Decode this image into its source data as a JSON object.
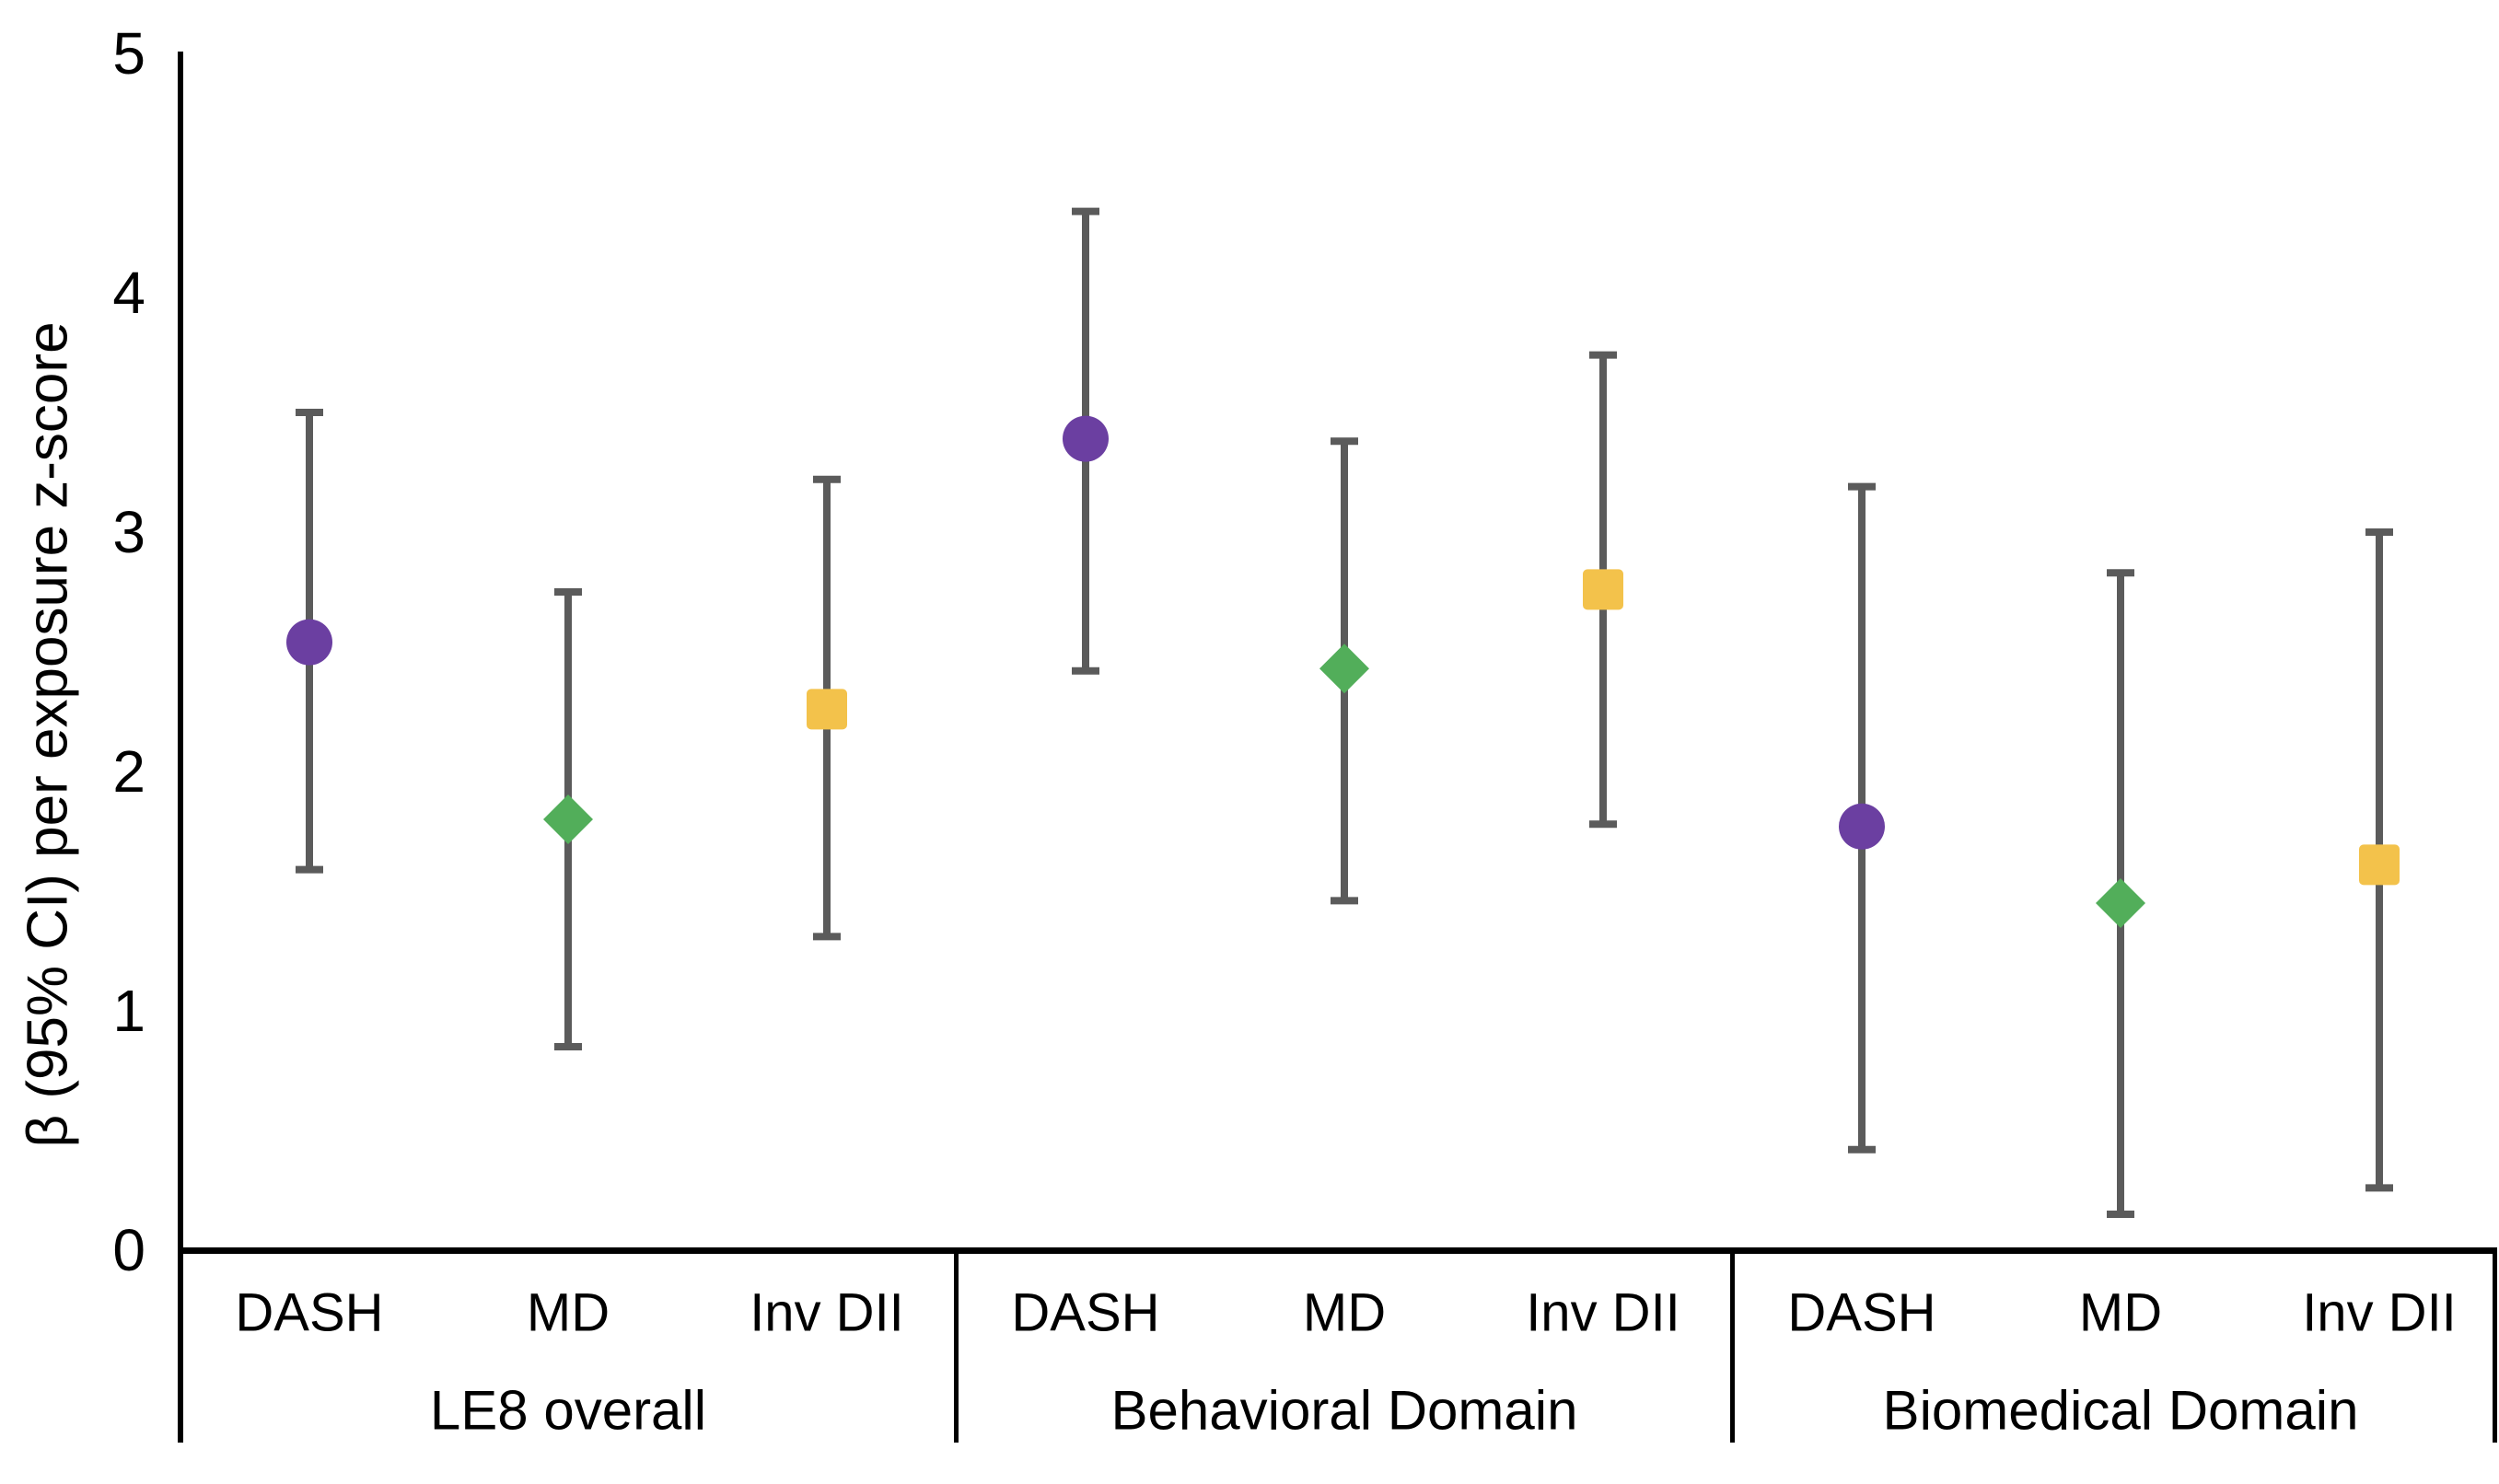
{
  "figure": {
    "background": "#ffffff"
  },
  "chart_data": {
    "type": "scatter",
    "title": "",
    "xlabel": "",
    "ylabel": "β (95% CI) per exposure z-score",
    "ylim": [
      0,
      5
    ],
    "yticks": [
      0,
      1,
      2,
      3,
      4,
      5
    ],
    "grid": false,
    "legend_position": "none",
    "error_bar_color": "#5B5B5B",
    "axis_color": "#000000",
    "markers": {
      "DASH": {
        "shape": "circle",
        "color": "#6B3FA1"
      },
      "MD": {
        "shape": "diamond",
        "color": "#52AE5A"
      },
      "Inv DII": {
        "shape": "square",
        "color": "#F3C24B"
      }
    },
    "groups": [
      {
        "label": "LE8 overall",
        "points": [
          {
            "category": "DASH",
            "value": 2.54,
            "ci_low": 1.59,
            "ci_high": 3.5
          },
          {
            "category": "MD",
            "value": 1.8,
            "ci_low": 0.85,
            "ci_high": 2.75
          },
          {
            "category": "Inv DII",
            "value": 2.26,
            "ci_low": 1.31,
            "ci_high": 3.22
          }
        ]
      },
      {
        "label": "Behavioral Domain",
        "points": [
          {
            "category": "DASH",
            "value": 3.39,
            "ci_low": 2.42,
            "ci_high": 4.34
          },
          {
            "category": "MD",
            "value": 2.43,
            "ci_low": 1.46,
            "ci_high": 3.38
          },
          {
            "category": "Inv DII",
            "value": 2.76,
            "ci_low": 1.78,
            "ci_high": 3.74
          }
        ]
      },
      {
        "label": "Biomedical Domain",
        "points": [
          {
            "category": "DASH",
            "value": 1.77,
            "ci_low": 0.42,
            "ci_high": 3.19
          },
          {
            "category": "MD",
            "value": 1.45,
            "ci_low": 0.15,
            "ci_high": 2.83
          },
          {
            "category": "Inv DII",
            "value": 1.61,
            "ci_low": 0.26,
            "ci_high": 3.0
          }
        ]
      }
    ]
  }
}
